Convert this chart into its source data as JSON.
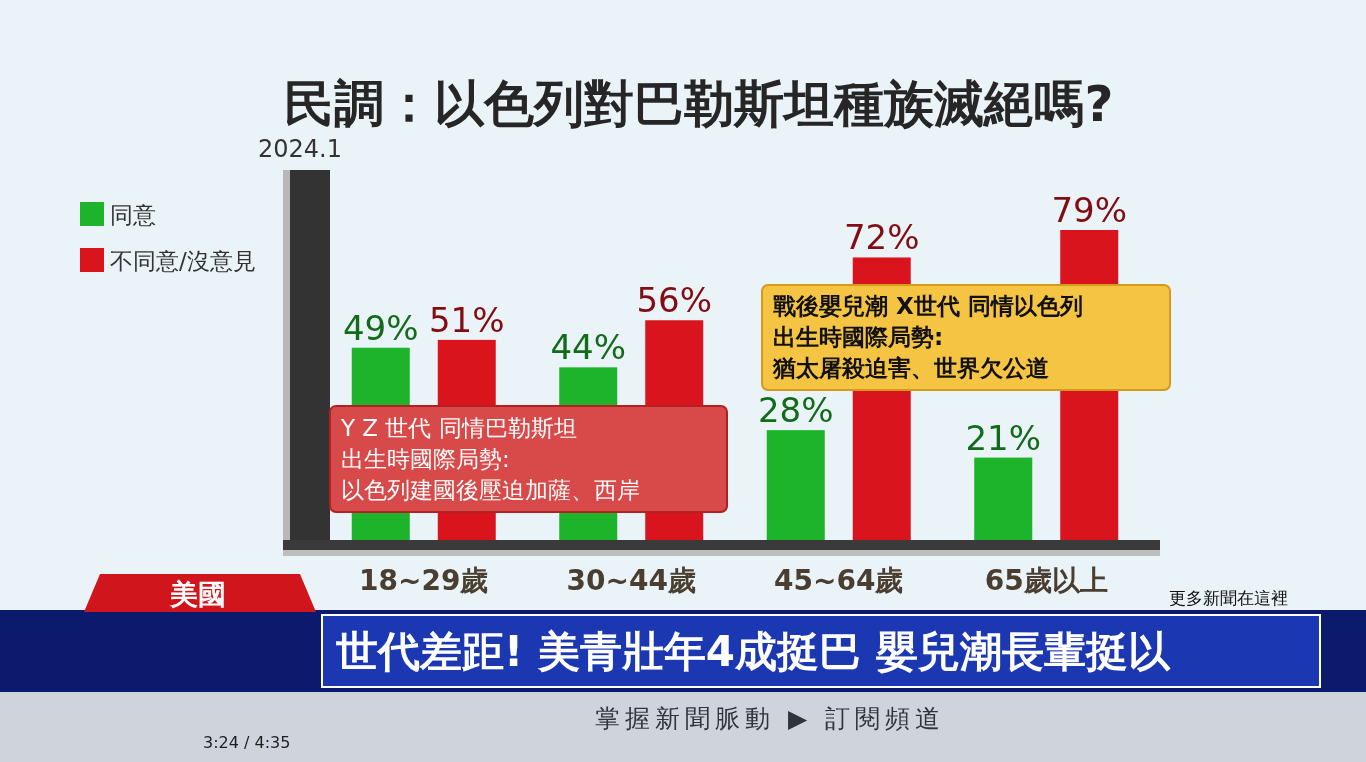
{
  "chart_data": {
    "type": "bar",
    "title": "民調：以色列對巴勒斯坦種族滅絕嗎?",
    "subtitle": "2024.1",
    "categories": [
      "18~29歲",
      "30~44歲",
      "45~64歲",
      "65歲以上"
    ],
    "series": [
      {
        "name": "同意",
        "color": "#1db32a",
        "values": [
          49,
          44,
          28,
          21
        ],
        "value_labels": [
          "49%",
          "44%",
          "28%",
          "21%"
        ]
      },
      {
        "name": "不同意/沒意見",
        "color": "#d9141c",
        "values": [
          51,
          56,
          72,
          79
        ],
        "value_labels": [
          "51%",
          "56%",
          "72%",
          "79%"
        ]
      }
    ],
    "legend": "top left",
    "annotations": [
      "Y Z 世代 同情巴勒斯坦",
      "出生時國際局勢:",
      "以色列建國後壓迫加薩、西岸",
      "戰後嬰兒潮 X世代 同情以色列",
      "出生時國際局勢:",
      "猶太屠殺迫害、世界欠公道",
      "美國",
      "更多新聞在這裡",
      "世代差距! 美青壯年4成挺巴 嬰兒潮長輩挺以",
      "掌握新聞脈動 ▶ 訂閱頻道",
      "3:24 / 4:35"
    ]
  }
}
